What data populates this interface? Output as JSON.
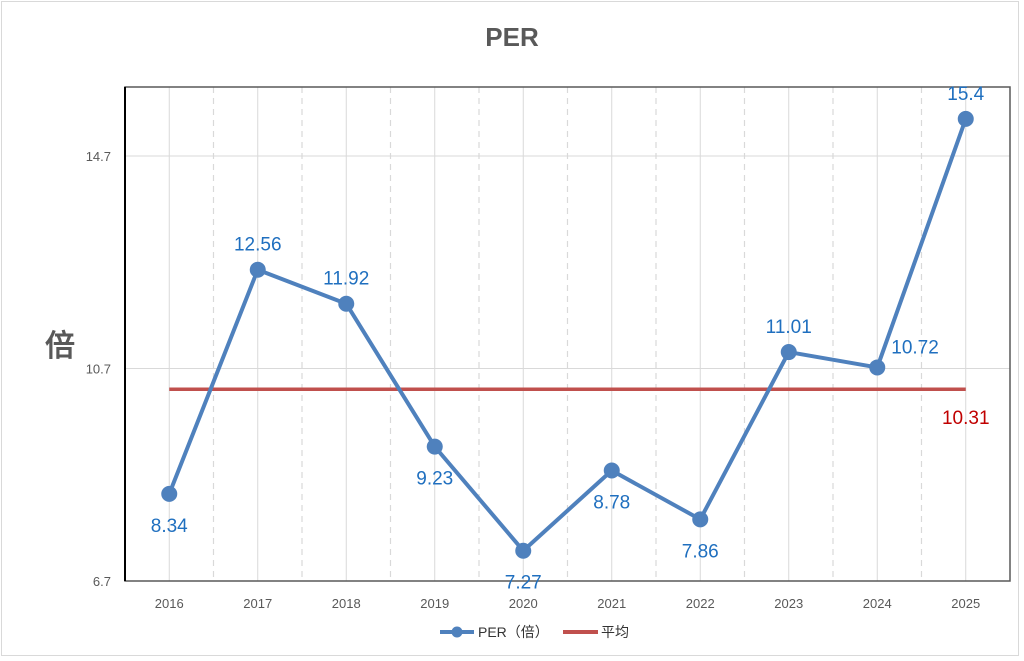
{
  "chart_data": {
    "type": "line",
    "title": "PER",
    "ylabel": "倍",
    "xlabel": "",
    "categories": [
      "2016",
      "2017",
      "2018",
      "2019",
      "2020",
      "2021",
      "2022",
      "2023",
      "2024",
      "2025"
    ],
    "series": [
      {
        "name": "PER（倍）",
        "values": [
          8.34,
          12.56,
          11.92,
          9.23,
          7.27,
          8.78,
          7.86,
          11.01,
          10.72,
          15.4
        ],
        "color": "#4f81bd",
        "labels": [
          "8.34",
          "12.56",
          "11.92",
          "9.23",
          "7.27",
          "8.78",
          "7.86",
          "11.01",
          "10.72",
          "15.4"
        ]
      },
      {
        "name": "平均",
        "value": 10.31,
        "label": "10.31",
        "color": "#c0504d"
      }
    ],
    "yticks": [
      "6.7",
      "10.7",
      "14.7"
    ],
    "ytick_values": [
      6.7,
      10.7,
      14.7
    ],
    "ylim": [
      6.7,
      16.0
    ],
    "grid": true,
    "legend": "bottom"
  }
}
